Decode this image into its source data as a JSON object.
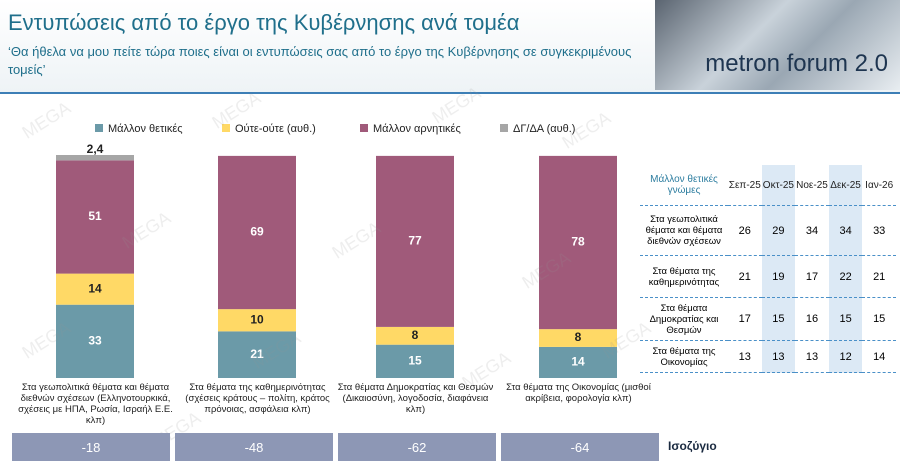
{
  "header": {
    "title": "Εντυπώσεις από το έργο της Κυβέρνησης ανά τομέα",
    "subtitle": "‘Θα ήθελα να μου πείτε τώρα ποιες είναι οι εντυπώσεις σας από το έργο της Κυβέρνησης σε συγκεκριμένους τομείς’",
    "logo": "metron forum 2.0"
  },
  "watermark": "MEGA",
  "chart_data": {
    "type": "stacked_bar",
    "categories": [
      "Στα γεωπολιτικά θέματα και θέματα διεθνών σχέσεων (Ελληνοτουρκικά, σχέσεις με ΗΠΑ, Ρωσία, Ισραήλ Ε.Ε. κλπ)",
      "Στα θέματα της καθημερινότητας (σχέσεις κράτους – πολίτη, κράτος πρόνοιας, ασφάλεια κλπ)",
      "Στα θέματα Δημοκρατίας και Θεσμών (Δικαιοσύνη, λογοδοσία, διαφάνεια κλπ)",
      "Στα θέματα της Οικονομίας (μισθοί ακρίβεια, φορολογία κλπ)"
    ],
    "series": [
      {
        "name": "Μάλλον θετικές",
        "color": "#6b9aa8",
        "values": [
          33,
          21,
          15,
          14
        ]
      },
      {
        "name": "Ούτε-ούτε  (αυθ.)",
        "color": "#ffd966",
        "values": [
          14,
          10,
          8,
          8
        ]
      },
      {
        "name": "Μάλλον αρνητικές",
        "color": "#a05a7a",
        "values": [
          51,
          69,
          77,
          78
        ]
      },
      {
        "name": "ΔΓ/ΔΑ (αυθ.)",
        "color": "#a6a6a6",
        "values": [
          2.4,
          null,
          null,
          null
        ],
        "value_labels": [
          "2,4",
          null,
          null,
          null
        ]
      }
    ]
  },
  "table": {
    "header": "Μάλλον θετικές γνώμες",
    "columns": [
      "Σεπ-25",
      "Οκτ-25",
      "Νοε-25",
      "Δεκ-25",
      "Ιαν-26"
    ],
    "rows": [
      [
        "Στα γεωπολιτικά θέματα και θέματα διεθνών σχέσεων",
        26,
        29,
        34,
        34,
        33
      ],
      [
        "Στα θέματα της καθημερινότητας",
        21,
        19,
        17,
        22,
        21
      ],
      [
        "Στα θέματα Δημοκρατίας και Θεσμών",
        17,
        15,
        16,
        15,
        15
      ],
      [
        "Στα θέματα της Οικονομίας",
        13,
        13,
        13,
        12,
        14
      ]
    ]
  },
  "balance": {
    "label": "Ισοζύγιο",
    "values": [
      -18,
      -48,
      -62,
      -64
    ]
  }
}
